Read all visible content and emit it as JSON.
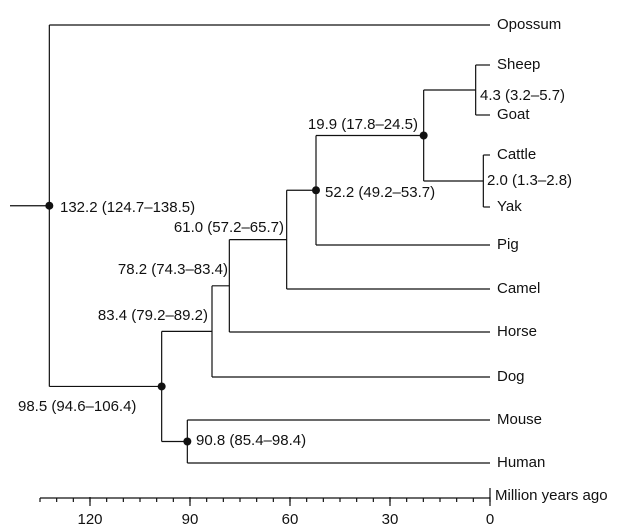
{
  "tree": {
    "label": "132.2 (124.7–138.5)",
    "age": 132.2,
    "children": [
      {
        "label": "Opossum"
      },
      {
        "label": "98.5 (94.6–106.4)",
        "age": 98.5,
        "children": [
          {
            "label": "83.4 (79.2–89.2)",
            "age": 83.4,
            "children": [
              {
                "label": "78.2 (74.3–83.4)",
                "age": 78.2,
                "children": [
                  {
                    "label": "61.0 (57.2–65.7)",
                    "age": 61.0,
                    "children": [
                      {
                        "label": "52.2 (49.2–53.7)",
                        "age": 52.2,
                        "children": [
                          {
                            "label": "19.9 (17.8–24.5)",
                            "age": 19.9,
                            "children": [
                              {
                                "label": "4.3 (3.2–5.7)",
                                "age": 4.3,
                                "children": [
                                  {
                                    "label": "Sheep"
                                  },
                                  {
                                    "label": "Goat"
                                  }
                                ]
                              },
                              {
                                "label": "2.0 (1.3–2.8)",
                                "age": 2.0,
                                "children": [
                                  {
                                    "label": "Cattle"
                                  },
                                  {
                                    "label": "Yak"
                                  }
                                ]
                              }
                            ]
                          },
                          {
                            "label": "Pig"
                          }
                        ]
                      },
                      {
                        "label": "Camel"
                      }
                    ]
                  },
                  {
                    "label": "Horse"
                  }
                ]
              },
              {
                "label": "Dog"
              }
            ]
          },
          {
            "label": "90.8 (85.4–98.4)",
            "age": 90.8,
            "children": [
              {
                "label": "Mouse"
              },
              {
                "label": "Human"
              }
            ]
          }
        ]
      }
    ]
  },
  "axis": {
    "label": "Million years ago",
    "xlim": [
      135,
      0
    ],
    "xticks": [
      120,
      90,
      60,
      30,
      0
    ]
  }
}
